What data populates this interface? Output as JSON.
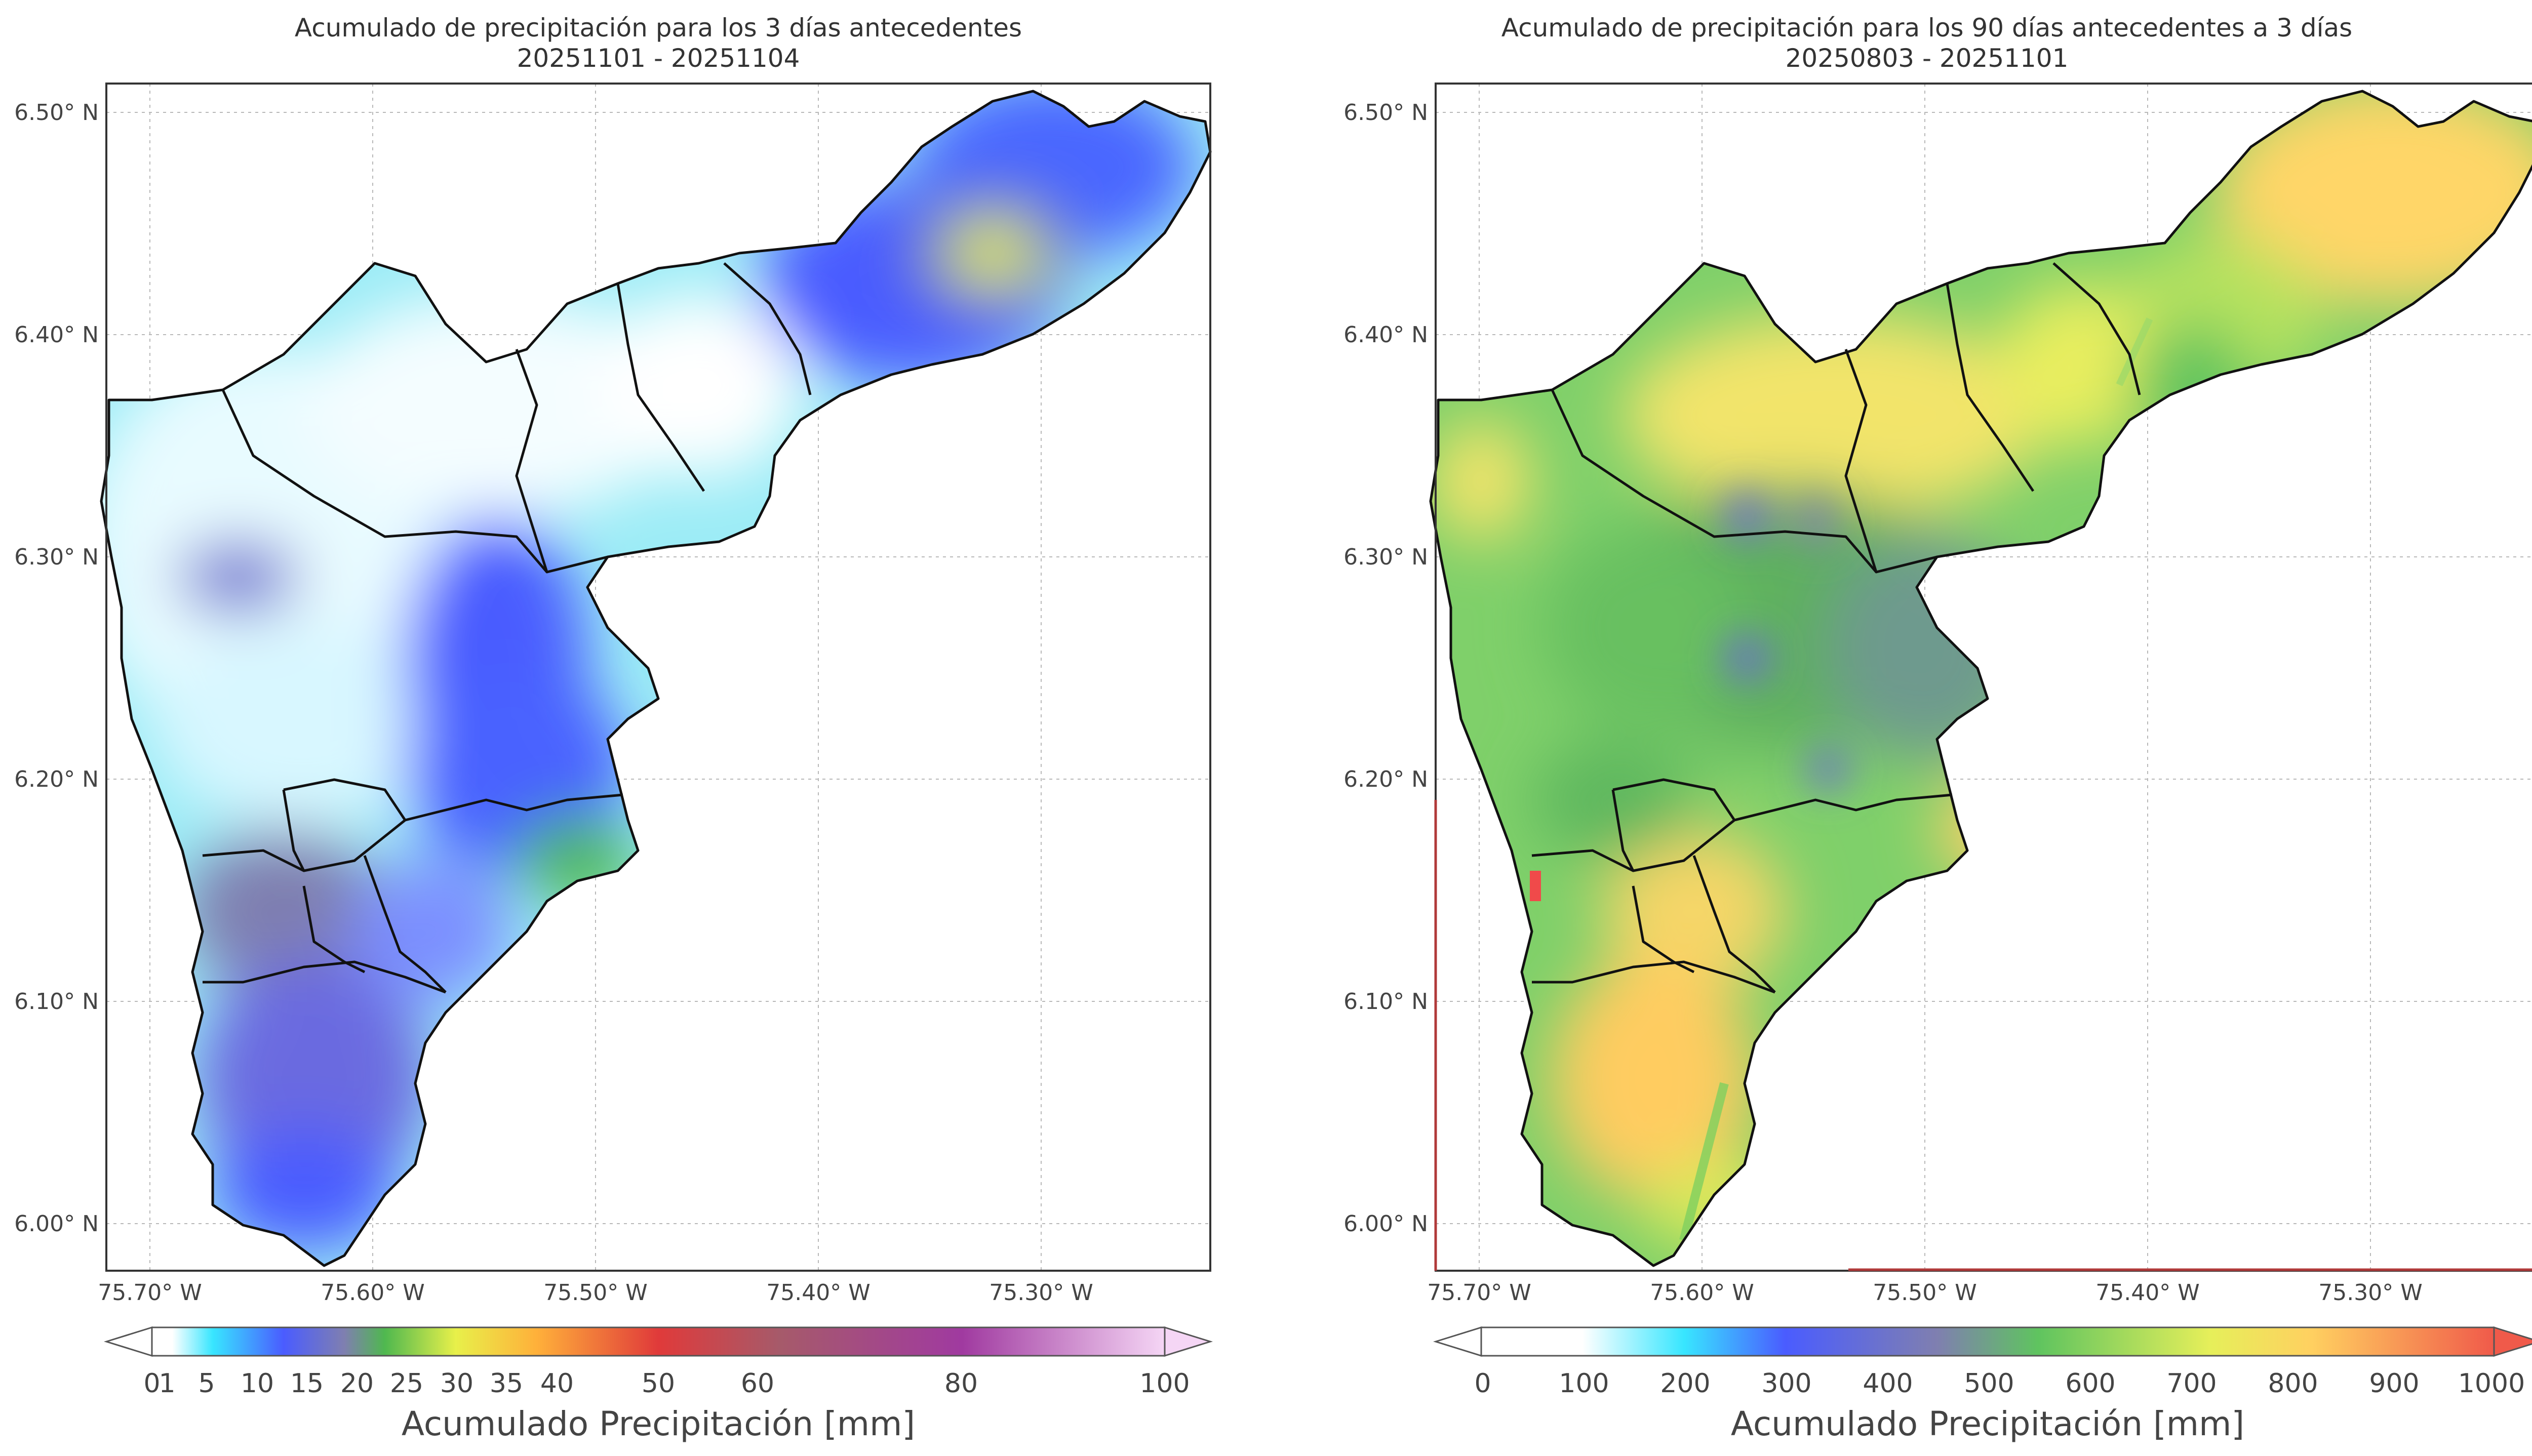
{
  "panels": [
    {
      "title_line1": "Acumulado de precipitación para los 3 días antecedentes",
      "title_line2": "20251101 - 20251104",
      "colorbar_label": "Acumulado Precipitación [mm]",
      "colorbar_ticks": [
        "0",
        "1",
        "5",
        "10",
        "15",
        "20",
        "25",
        "30",
        "35",
        "40",
        "50",
        "60",
        "80",
        "100"
      ]
    },
    {
      "title_line1": "Acumulado de precipitación para los 90 días antecedentes a 3 días",
      "title_line2": "20250803 - 20251101",
      "colorbar_label": "Acumulado Precipitación [mm]",
      "colorbar_ticks": [
        "0",
        "100",
        "200",
        "300",
        "400",
        "500",
        "600",
        "700",
        "800",
        "900",
        "1000"
      ]
    }
  ],
  "axes": {
    "lon_ticks": [
      "75.70° W",
      "75.60° W",
      "75.50° W",
      "75.40° W",
      "75.30° W"
    ],
    "lat_ticks": [
      "6.50° N",
      "6.40° N",
      "6.30° N",
      "6.20° N",
      "6.10° N",
      "6.00° N"
    ]
  },
  "colors": {
    "precip3_scale": [
      "#ffffff",
      "#38e6ff",
      "#4a5cff",
      "#7f7fb0",
      "#4fb84f",
      "#e8f04a",
      "#ffb03a",
      "#e03a3a",
      "#a65a6a",
      "#a03aa0",
      "#f5d6f5"
    ],
    "precip90_scale": [
      "#ffffff",
      "#38e6ff",
      "#4a5cff",
      "#7f7fb0",
      "#5fc45f",
      "#e6ef5a",
      "#ffd060",
      "#f05a4a"
    ]
  }
}
